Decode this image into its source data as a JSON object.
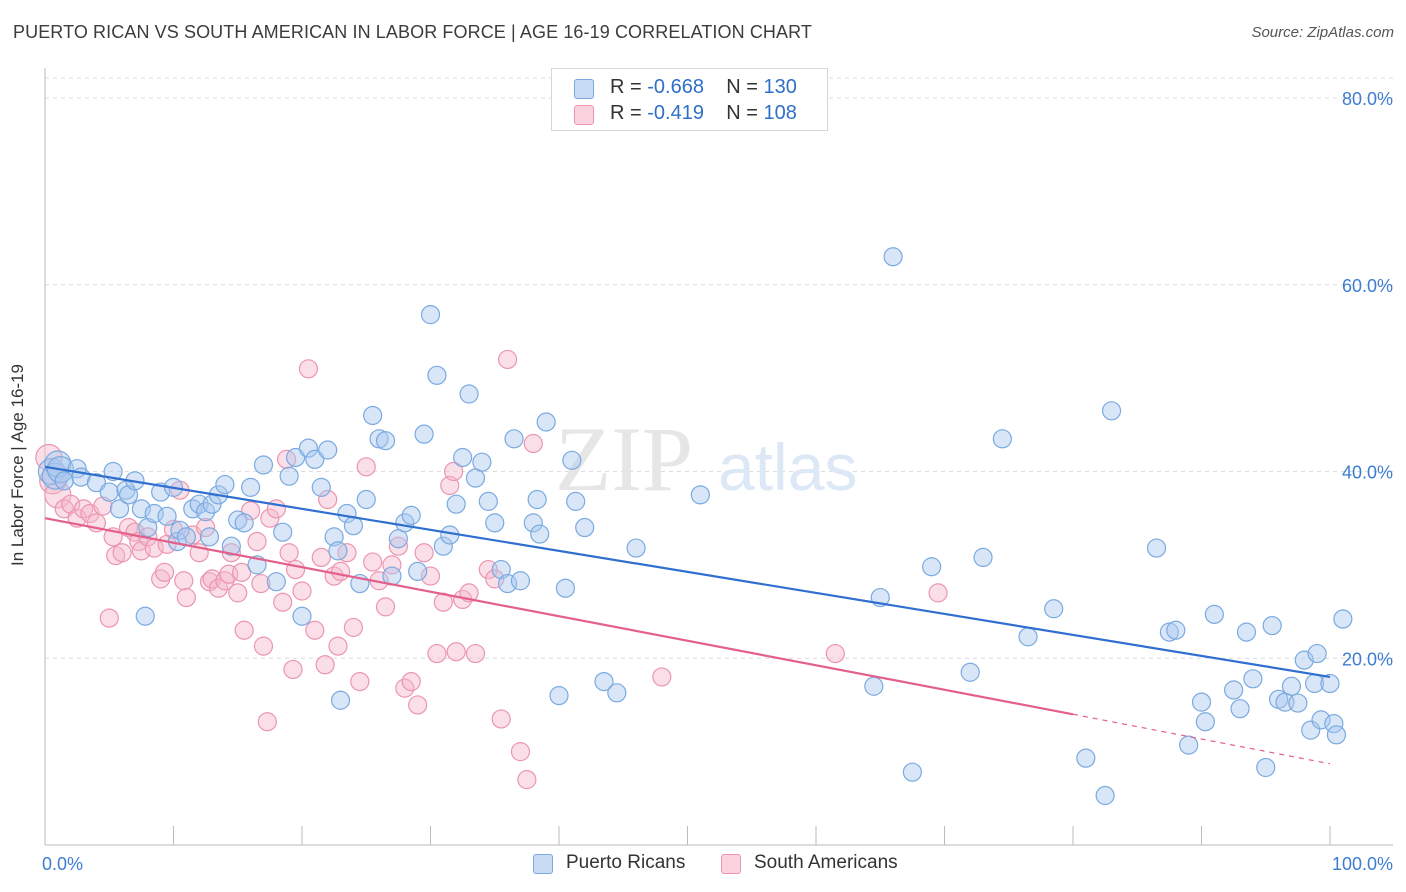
{
  "header": {
    "title": "PUERTO RICAN VS SOUTH AMERICAN IN LABOR FORCE | AGE 16-19 CORRELATION CHART",
    "source": "Source: ZipAtlas.com"
  },
  "watermark": {
    "zip": "ZIP",
    "atlas": "atlas"
  },
  "legend": {
    "rows": [
      {
        "r_label": "R =",
        "r_value": "-0.668",
        "n_label": "N =",
        "n_value": "130",
        "color": "#a8c8f0"
      },
      {
        "r_label": "R =",
        "r_value": "-0.419",
        "n_label": "N =",
        "n_value": "108",
        "color": "#f5b8cb"
      }
    ]
  },
  "bottom_legend": [
    {
      "label": "Puerto Ricans",
      "color": "#a8c8f0"
    },
    {
      "label": "South Americans",
      "color": "#f5b8cb"
    }
  ],
  "chart_data": {
    "type": "scatter",
    "title": "PUERTO RICAN VS SOUTH AMERICAN IN LABOR FORCE | AGE 16-19 CORRELATION CHART",
    "xlabel": "",
    "ylabel": "In Labor Force | Age 16-19",
    "xlim": [
      0,
      100
    ],
    "ylim": [
      0,
      82
    ],
    "x_tick_labels": [
      "0.0%",
      "100.0%"
    ],
    "y_ticks": [
      20,
      40,
      60,
      80
    ],
    "y_tick_labels": [
      "20.0%",
      "40.0%",
      "60.0%",
      "80.0%"
    ],
    "grid": true,
    "legend_position": "top-center",
    "colors": {
      "blue_fill": "#a8c8f0",
      "blue_stroke": "#7aaae0",
      "blue_line": "#2f6fcf",
      "pink_fill": "#f5b8cb",
      "pink_stroke": "#ec95b0",
      "pink_line": "#e2608a"
    },
    "series": [
      {
        "name": "Puerto Ricans",
        "trend": {
          "x": [
            0,
            100
          ],
          "y": [
            40.5,
            18.0
          ]
        },
        "points": [
          [
            0.5,
            40
          ],
          [
            0.8,
            39.5
          ],
          [
            1.0,
            40.8
          ],
          [
            1.2,
            40.2
          ],
          [
            1.5,
            39.0
          ],
          [
            2.5,
            40.3
          ],
          [
            2.8,
            39.4
          ],
          [
            4.0,
            38.8
          ],
          [
            5.0,
            37.8
          ],
          [
            5.3,
            40.0
          ],
          [
            5.8,
            36.0
          ],
          [
            6.3,
            38.0
          ],
          [
            6.5,
            37.5
          ],
          [
            7.0,
            39.0
          ],
          [
            7.5,
            36.0
          ],
          [
            7.8,
            24.5
          ],
          [
            8.0,
            34.0
          ],
          [
            8.5,
            35.5
          ],
          [
            9.0,
            37.8
          ],
          [
            9.5,
            35.2
          ],
          [
            10.0,
            38.3
          ],
          [
            10.3,
            32.5
          ],
          [
            10.5,
            33.7
          ],
          [
            11.0,
            33.0
          ],
          [
            11.5,
            36.0
          ],
          [
            12.0,
            36.5
          ],
          [
            12.5,
            35.7
          ],
          [
            12.8,
            33.0
          ],
          [
            13.0,
            36.5
          ],
          [
            13.5,
            37.5
          ],
          [
            14.0,
            38.6
          ],
          [
            14.5,
            32.0
          ],
          [
            15.0,
            34.8
          ],
          [
            15.5,
            34.5
          ],
          [
            16.0,
            38.3
          ],
          [
            16.5,
            30.0
          ],
          [
            17.0,
            40.7
          ],
          [
            18.0,
            28.2
          ],
          [
            18.5,
            33.5
          ],
          [
            19.0,
            39.5
          ],
          [
            19.5,
            41.5
          ],
          [
            20.0,
            24.5
          ],
          [
            20.5,
            42.5
          ],
          [
            21.0,
            41.3
          ],
          [
            21.5,
            38.3
          ],
          [
            22.0,
            42.3
          ],
          [
            22.5,
            33.0
          ],
          [
            22.8,
            31.5
          ],
          [
            23.0,
            15.5
          ],
          [
            23.5,
            35.5
          ],
          [
            24.0,
            34.2
          ],
          [
            24.5,
            28.0
          ],
          [
            25.0,
            37.0
          ],
          [
            25.5,
            46.0
          ],
          [
            26.0,
            43.5
          ],
          [
            26.5,
            43.3
          ],
          [
            27.0,
            28.8
          ],
          [
            27.5,
            32.8
          ],
          [
            28.0,
            34.5
          ],
          [
            28.5,
            35.3
          ],
          [
            29.0,
            29.3
          ],
          [
            29.5,
            44.0
          ],
          [
            30.0,
            56.8
          ],
          [
            30.5,
            50.3
          ],
          [
            31.0,
            32.0
          ],
          [
            31.5,
            33.2
          ],
          [
            32.0,
            36.5
          ],
          [
            32.5,
            41.5
          ],
          [
            33.0,
            48.3
          ],
          [
            33.5,
            39.3
          ],
          [
            34.0,
            41.0
          ],
          [
            34.5,
            36.8
          ],
          [
            35.0,
            34.5
          ],
          [
            35.5,
            29.5
          ],
          [
            36.0,
            28.0
          ],
          [
            36.5,
            43.5
          ],
          [
            37.0,
            28.3
          ],
          [
            38.0,
            34.5
          ],
          [
            38.3,
            37.0
          ],
          [
            38.5,
            33.3
          ],
          [
            39.0,
            45.3
          ],
          [
            40.0,
            16.0
          ],
          [
            40.5,
            27.5
          ],
          [
            41.0,
            41.2
          ],
          [
            41.3,
            36.8
          ],
          [
            42.0,
            34.0
          ],
          [
            43.5,
            17.5
          ],
          [
            44.5,
            16.3
          ],
          [
            46.0,
            31.8
          ],
          [
            51.0,
            37.5
          ],
          [
            64.5,
            17.0
          ],
          [
            65.0,
            26.5
          ],
          [
            66.0,
            63.0
          ],
          [
            67.5,
            7.8
          ],
          [
            69.0,
            29.8
          ],
          [
            72.0,
            18.5
          ],
          [
            73.0,
            30.8
          ],
          [
            74.5,
            43.5
          ],
          [
            76.5,
            22.3
          ],
          [
            78.5,
            25.3
          ],
          [
            81.0,
            9.3
          ],
          [
            82.5,
            5.3
          ],
          [
            83.0,
            46.5
          ],
          [
            86.5,
            31.8
          ],
          [
            87.5,
            22.8
          ],
          [
            88.0,
            23.0
          ],
          [
            89.0,
            10.7
          ],
          [
            90.0,
            15.3
          ],
          [
            90.3,
            13.2
          ],
          [
            91.0,
            24.7
          ],
          [
            92.5,
            16.6
          ],
          [
            93.0,
            14.6
          ],
          [
            93.5,
            22.8
          ],
          [
            94.0,
            17.8
          ],
          [
            95.0,
            8.3
          ],
          [
            95.5,
            23.5
          ],
          [
            96.0,
            15.6
          ],
          [
            96.5,
            15.3
          ],
          [
            97.0,
            17.0
          ],
          [
            97.5,
            15.2
          ],
          [
            98.0,
            19.8
          ],
          [
            98.5,
            12.3
          ],
          [
            98.8,
            17.3
          ],
          [
            99.0,
            20.5
          ],
          [
            99.3,
            13.4
          ],
          [
            100.0,
            17.3
          ],
          [
            100.3,
            13.0
          ],
          [
            100.5,
            11.8
          ],
          [
            101.0,
            24.2
          ]
        ]
      },
      {
        "name": "South Americans",
        "trend": {
          "x": [
            0,
            80
          ],
          "y": [
            35.0,
            14.0
          ]
        },
        "trend_dashed": {
          "x": [
            80,
            100
          ],
          "y": [
            14.0,
            8.7
          ]
        },
        "points": [
          [
            0.3,
            41.5
          ],
          [
            0.6,
            39.0
          ],
          [
            1.0,
            37.5
          ],
          [
            1.5,
            36.0
          ],
          [
            2.0,
            36.5
          ],
          [
            2.5,
            35.0
          ],
          [
            3.0,
            36.0
          ],
          [
            3.5,
            35.5
          ],
          [
            4.0,
            34.5
          ],
          [
            4.5,
            36.3
          ],
          [
            5.0,
            24.3
          ],
          [
            5.3,
            33.0
          ],
          [
            5.5,
            31.0
          ],
          [
            6.0,
            31.3
          ],
          [
            6.5,
            34.0
          ],
          [
            7.0,
            33.5
          ],
          [
            7.3,
            32.5
          ],
          [
            7.5,
            31.5
          ],
          [
            8.0,
            33.0
          ],
          [
            8.5,
            31.8
          ],
          [
            9.0,
            28.5
          ],
          [
            9.3,
            29.2
          ],
          [
            9.5,
            32.2
          ],
          [
            10.0,
            33.8
          ],
          [
            10.5,
            38.0
          ],
          [
            10.8,
            28.3
          ],
          [
            11.0,
            26.5
          ],
          [
            11.5,
            33.2
          ],
          [
            12.0,
            31.3
          ],
          [
            12.5,
            34.0
          ],
          [
            12.8,
            28.2
          ],
          [
            13.0,
            28.5
          ],
          [
            13.5,
            27.5
          ],
          [
            14.0,
            28.3
          ],
          [
            14.3,
            29.0
          ],
          [
            14.5,
            31.3
          ],
          [
            15.0,
            27.0
          ],
          [
            15.3,
            29.2
          ],
          [
            15.5,
            23.0
          ],
          [
            16.0,
            35.8
          ],
          [
            16.5,
            32.5
          ],
          [
            16.8,
            28.0
          ],
          [
            17.0,
            21.3
          ],
          [
            17.3,
            13.2
          ],
          [
            17.5,
            35.0
          ],
          [
            18.0,
            36.0
          ],
          [
            18.5,
            26.0
          ],
          [
            18.8,
            41.3
          ],
          [
            19.0,
            31.3
          ],
          [
            19.3,
            18.8
          ],
          [
            19.5,
            29.5
          ],
          [
            20.0,
            27.2
          ],
          [
            20.5,
            51.0
          ],
          [
            21.0,
            23.0
          ],
          [
            21.5,
            30.8
          ],
          [
            21.8,
            19.3
          ],
          [
            22.0,
            37.0
          ],
          [
            22.5,
            28.8
          ],
          [
            22.8,
            21.3
          ],
          [
            23.0,
            29.3
          ],
          [
            23.5,
            31.3
          ],
          [
            24.0,
            23.3
          ],
          [
            24.5,
            17.5
          ],
          [
            25.0,
            40.5
          ],
          [
            25.5,
            30.3
          ],
          [
            26.0,
            28.3
          ],
          [
            26.5,
            25.5
          ],
          [
            27.0,
            30.0
          ],
          [
            27.5,
            32.0
          ],
          [
            28.0,
            16.8
          ],
          [
            28.5,
            17.5
          ],
          [
            29.0,
            15.0
          ],
          [
            29.5,
            31.3
          ],
          [
            30.0,
            28.8
          ],
          [
            30.5,
            20.5
          ],
          [
            31.0,
            26.0
          ],
          [
            31.5,
            38.5
          ],
          [
            31.8,
            40.0
          ],
          [
            32.0,
            20.7
          ],
          [
            32.5,
            26.3
          ],
          [
            33.0,
            27.0
          ],
          [
            33.5,
            20.5
          ],
          [
            34.5,
            29.5
          ],
          [
            35.0,
            28.5
          ],
          [
            35.5,
            13.5
          ],
          [
            36.0,
            52.0
          ],
          [
            37.0,
            10.0
          ],
          [
            37.5,
            7.0
          ],
          [
            38.0,
            43.0
          ],
          [
            48.0,
            18.0
          ],
          [
            61.5,
            20.5
          ],
          [
            69.5,
            27.0
          ]
        ]
      }
    ]
  }
}
